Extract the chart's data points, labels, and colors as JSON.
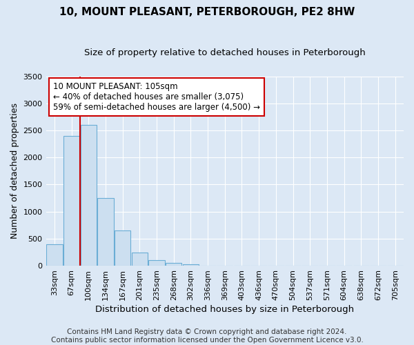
{
  "title": "10, MOUNT PLEASANT, PETERBOROUGH, PE2 8HW",
  "subtitle": "Size of property relative to detached houses in Peterborough",
  "xlabel": "Distribution of detached houses by size in Peterborough",
  "ylabel": "Number of detached properties",
  "bar_labels": [
    "33sqm",
    "67sqm",
    "100sqm",
    "134sqm",
    "167sqm",
    "201sqm",
    "235sqm",
    "268sqm",
    "302sqm",
    "336sqm",
    "369sqm",
    "403sqm",
    "436sqm",
    "470sqm",
    "504sqm",
    "537sqm",
    "571sqm",
    "604sqm",
    "638sqm",
    "672sqm",
    "705sqm"
  ],
  "bar_values": [
    400,
    2400,
    2600,
    1250,
    650,
    250,
    100,
    50,
    30,
    0,
    0,
    0,
    0,
    0,
    0,
    0,
    0,
    0,
    0,
    0,
    0
  ],
  "bar_color": "#ccdff0",
  "bar_edgecolor": "#6aadd5",
  "vline_x": 1.5,
  "vline_color": "#cc0000",
  "ylim": [
    0,
    3500
  ],
  "yticks": [
    0,
    500,
    1000,
    1500,
    2000,
    2500,
    3000,
    3500
  ],
  "annotation_title": "10 MOUNT PLEASANT: 105sqm",
  "annotation_line1": "← 40% of detached houses are smaller (3,075)",
  "annotation_line2": "59% of semi-detached houses are larger (4,500) →",
  "annotation_box_facecolor": "#ffffff",
  "annotation_box_edgecolor": "#cc0000",
  "footer_line1": "Contains HM Land Registry data © Crown copyright and database right 2024.",
  "footer_line2": "Contains public sector information licensed under the Open Government Licence v3.0.",
  "outer_background_color": "#dce8f5",
  "plot_background_color": "#dce8f5",
  "grid_color": "#ffffff",
  "title_fontsize": 11,
  "subtitle_fontsize": 9.5,
  "xlabel_fontsize": 9.5,
  "ylabel_fontsize": 9,
  "tick_fontsize": 8,
  "footer_fontsize": 7.5,
  "annotation_fontsize": 8.5
}
